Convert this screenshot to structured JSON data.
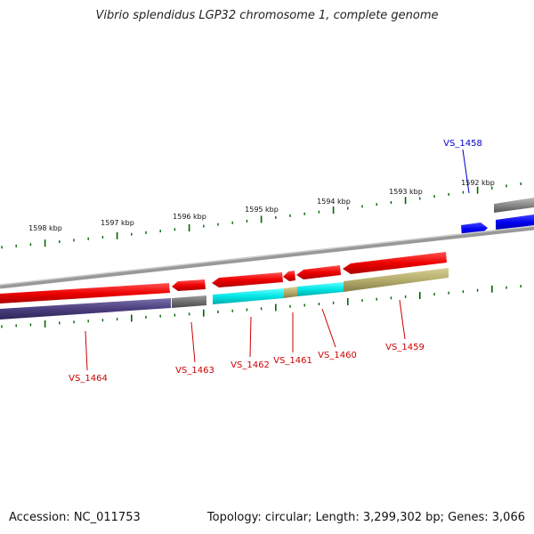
{
  "title": "Vibrio splendidus LGP32 chromosome 1, complete genome",
  "footer": {
    "accession": "Accession: NC_011753",
    "summary": "Topology: circular; Length: 3,299,302 bp; Genes: 3,066"
  },
  "scale_ticks": [
    "1598 kbp",
    "1597 kbp",
    "1596 kbp",
    "1595 kbp",
    "1594 kbp",
    "1593 kbp",
    "1592 kbp"
  ],
  "genes": [
    {
      "name": "VS_1464",
      "color": "#cc0000"
    },
    {
      "name": "VS_1463",
      "color": "#cc0000"
    },
    {
      "name": "VS_1462",
      "color": "#cc0000"
    },
    {
      "name": "VS_1461",
      "color": "#cc0000"
    },
    {
      "name": "VS_1460",
      "color": "#cc0000"
    },
    {
      "name": "VS_1459",
      "color": "#cc0000"
    },
    {
      "name": "VS_1458",
      "color": "#0000cc"
    }
  ],
  "colors": {
    "reverse_cds": "#ee0000",
    "forward_cds": "#0000ee",
    "backbone": "#888888",
    "ticks": "#006600",
    "cog_purple": "#4b3f7f",
    "cog_gray": "#707070",
    "cog_cyan": "#00e5e5",
    "cog_olive": "#b5ad6c"
  }
}
